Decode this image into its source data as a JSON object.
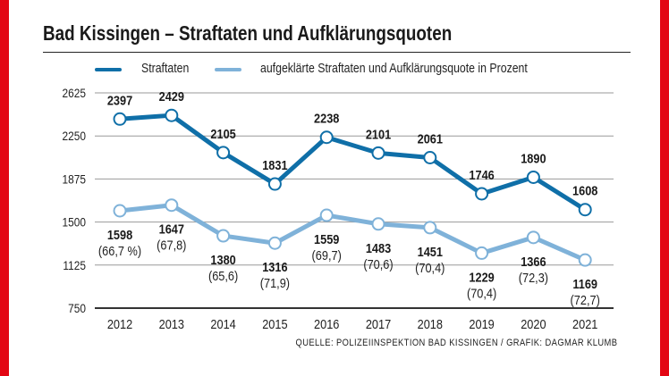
{
  "title": "Bad Kissingen – Straftaten und Aufklärungsquoten",
  "source": "QUELLE: POLIZEIINSPEKTION BAD KISSINGEN / GRAFIK: DAGMAR KLUMB",
  "colors": {
    "dark": "#0f6fa8",
    "light": "#7fb2d9",
    "border": "#e30613"
  },
  "chart_data": {
    "type": "line",
    "title": "Bad Kissingen – Straftaten und Aufklärungsquoten",
    "x": [
      "2012",
      "2013",
      "2014",
      "2015",
      "2016",
      "2017",
      "2018",
      "2019",
      "2020",
      "2021"
    ],
    "ylim": [
      750,
      2625
    ],
    "yticks": [
      "2625",
      "2250",
      "1875",
      "1500",
      "1125",
      "750"
    ],
    "ytick_values": [
      2625,
      2250,
      1875,
      1500,
      1125,
      750
    ],
    "legend": "top",
    "grid": true,
    "series": [
      {
        "name": "Straftaten",
        "values": [
          2397,
          2429,
          2105,
          1831,
          2238,
          2101,
          2061,
          1746,
          1890,
          1608
        ],
        "labels": [
          "2397",
          "2429",
          "2105",
          "1831",
          "2238",
          "2101",
          "2061",
          "1746",
          "1890",
          "1608"
        ]
      },
      {
        "name": "aufgeklärte Straftaten und Aufklärungsquote in Prozent",
        "values": [
          1598,
          1647,
          1380,
          1316,
          1559,
          1483,
          1451,
          1229,
          1366,
          1169
        ],
        "labels": [
          "1598",
          "1647",
          "1380",
          "1316",
          "1559",
          "1483",
          "1451",
          "1229",
          "1366",
          "1169"
        ],
        "percent_labels": [
          "(66,7 %)",
          "(67,8)",
          "(65,6)",
          "(71,9)",
          "(69,7)",
          "(70,6)",
          "(70,4)",
          "(70,4)",
          "(72,3)",
          "(72,7)"
        ],
        "percent_values": [
          66.7,
          67.8,
          65.6,
          71.9,
          69.7,
          70.6,
          70.4,
          70.4,
          72.3,
          72.7
        ]
      }
    ]
  }
}
